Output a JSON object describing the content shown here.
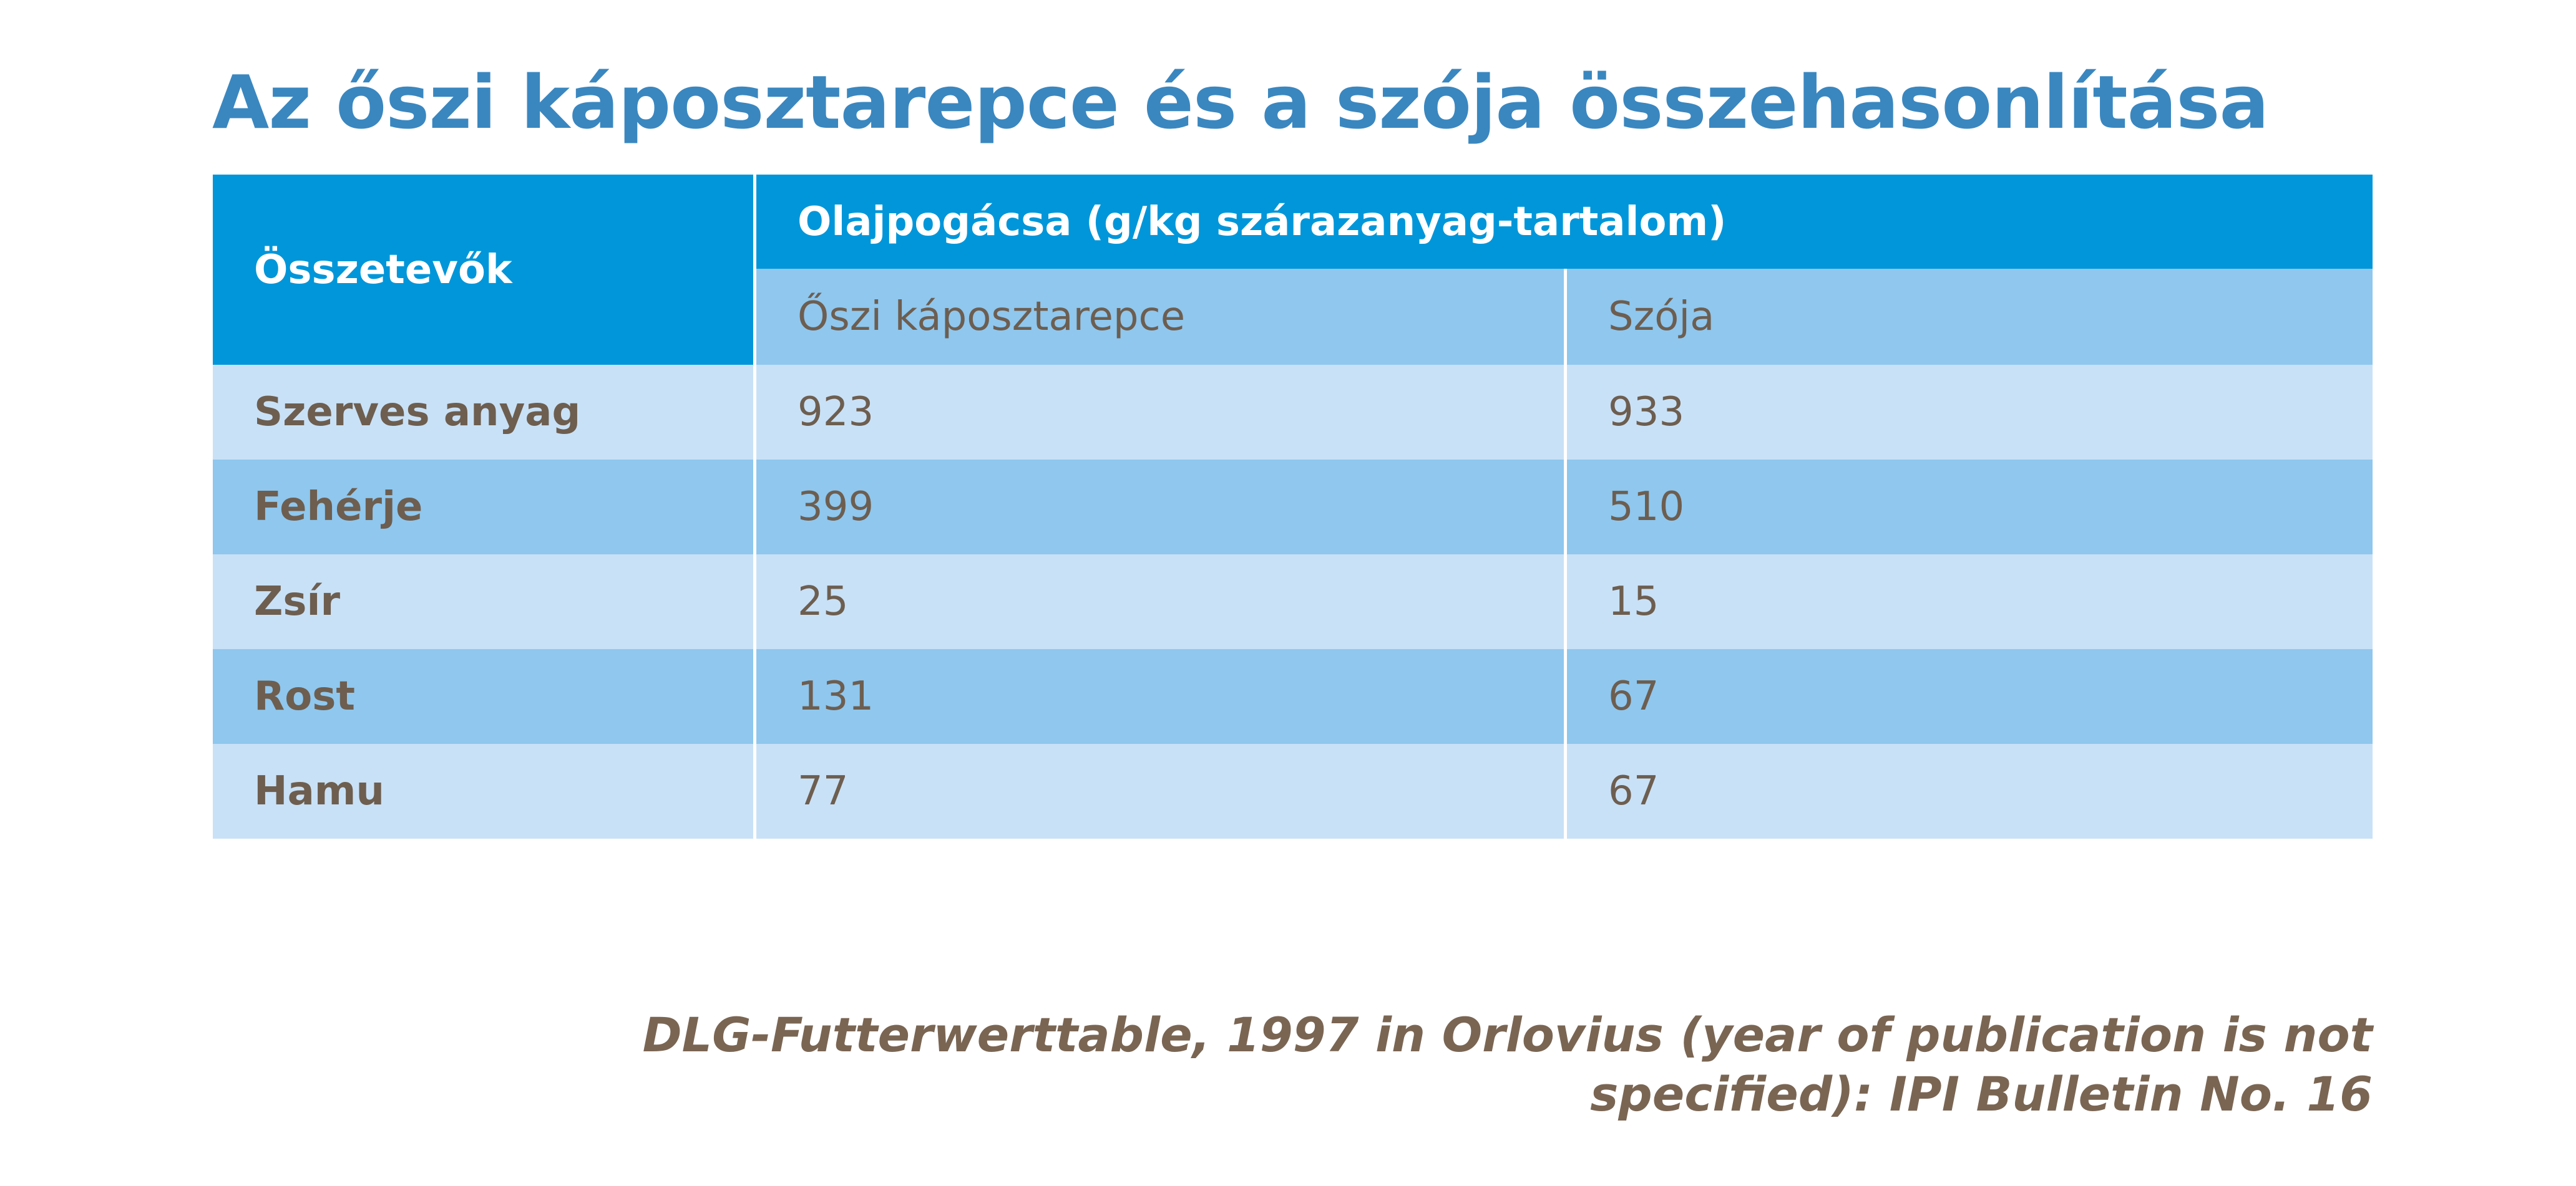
{
  "title": "Az őszi káposztarepce és a szója összehasonlítása",
  "table": {
    "header": {
      "first": "Összetevők",
      "group": "Olajpogácsa (g/kg szárazanyag-tartalom)",
      "sub": [
        "Őszi káposztarepce",
        "Szója"
      ]
    },
    "rows": [
      [
        "Szerves anyag",
        923,
        933
      ],
      [
        "Fehérje",
        399,
        510
      ],
      [
        "Zsír",
        25,
        15
      ],
      [
        "Rost",
        131,
        67
      ],
      [
        "Hamu",
        77,
        67
      ]
    ]
  },
  "source": {
    "lines": [
      "DLG-Futterwerttable, 1997 in Orlovius (year of publication is not",
      "specified): IPI Bulletin No. 16"
    ]
  }
}
